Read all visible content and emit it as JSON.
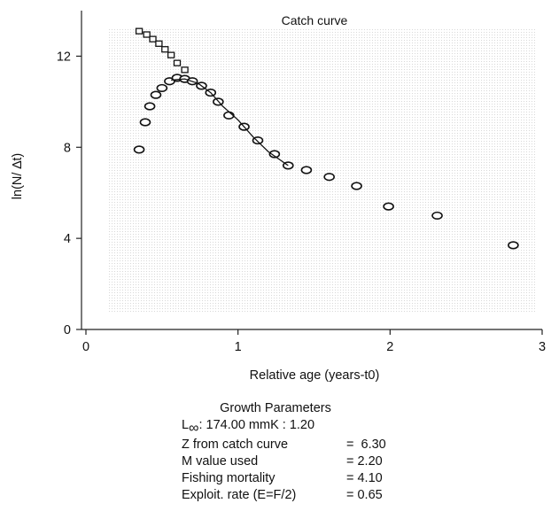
{
  "chart_data": {
    "type": "scatter",
    "title": "Catch curve",
    "xlabel": "Relative age (years-t0)",
    "ylabel": "ln(N/ ∆t)",
    "xlim": [
      0,
      3
    ],
    "ylim": [
      0,
      14
    ],
    "xticks": [
      0,
      1,
      2,
      3
    ],
    "yticks": [
      0,
      4,
      8,
      12
    ],
    "grid": false,
    "series": [
      {
        "marker": "circle",
        "points": [
          [
            0.35,
            7.9
          ],
          [
            0.39,
            9.1
          ],
          [
            0.42,
            9.8
          ],
          [
            0.46,
            10.3
          ],
          [
            0.5,
            10.6
          ],
          [
            0.55,
            10.9
          ],
          [
            0.6,
            11.05
          ],
          [
            0.65,
            11.0
          ],
          [
            0.7,
            10.9
          ],
          [
            0.76,
            10.7
          ],
          [
            0.82,
            10.4
          ],
          [
            0.87,
            10.0
          ],
          [
            0.94,
            9.4
          ],
          [
            1.04,
            8.9
          ],
          [
            1.13,
            8.3
          ],
          [
            1.24,
            7.7
          ],
          [
            1.33,
            7.2
          ],
          [
            1.45,
            7.0
          ],
          [
            1.6,
            6.7
          ],
          [
            1.78,
            6.3
          ],
          [
            1.99,
            5.4
          ],
          [
            2.31,
            5.0
          ],
          [
            2.81,
            3.7
          ]
        ]
      },
      {
        "marker": "square",
        "points": [
          [
            0.35,
            13.1
          ],
          [
            0.4,
            12.95
          ],
          [
            0.44,
            12.75
          ],
          [
            0.48,
            12.55
          ],
          [
            0.52,
            12.3
          ],
          [
            0.56,
            12.05
          ],
          [
            0.6,
            11.7
          ],
          [
            0.65,
            11.4
          ]
        ]
      },
      {
        "marker": "line",
        "points": [
          [
            0.56,
            10.95
          ],
          [
            0.65,
            11.0
          ],
          [
            0.74,
            10.8
          ],
          [
            0.82,
            10.4
          ],
          [
            0.9,
            9.8
          ],
          [
            1.0,
            9.2
          ],
          [
            1.1,
            8.45
          ],
          [
            1.2,
            7.8
          ],
          [
            1.33,
            7.2
          ]
        ]
      }
    ],
    "colors": {
      "axis": "#222222",
      "marker": "#111111",
      "background_texture": "#f4f4f4"
    }
  },
  "params": {
    "heading": "Growth Parameters",
    "linf_symbol": "L",
    "linf_sub": "∞",
    "linf_value": ": 174.00 mmK : 1.20",
    "rows": [
      {
        "label": "Z from catch curve",
        "value": "=  6.30"
      },
      {
        "label": "M value used",
        "value": "= 2.20"
      },
      {
        "label": "Fishing mortality",
        "value": "= 4.10"
      },
      {
        "label": "Exploit. rate (E=F/2)",
        "value": "= 0.65"
      }
    ]
  }
}
